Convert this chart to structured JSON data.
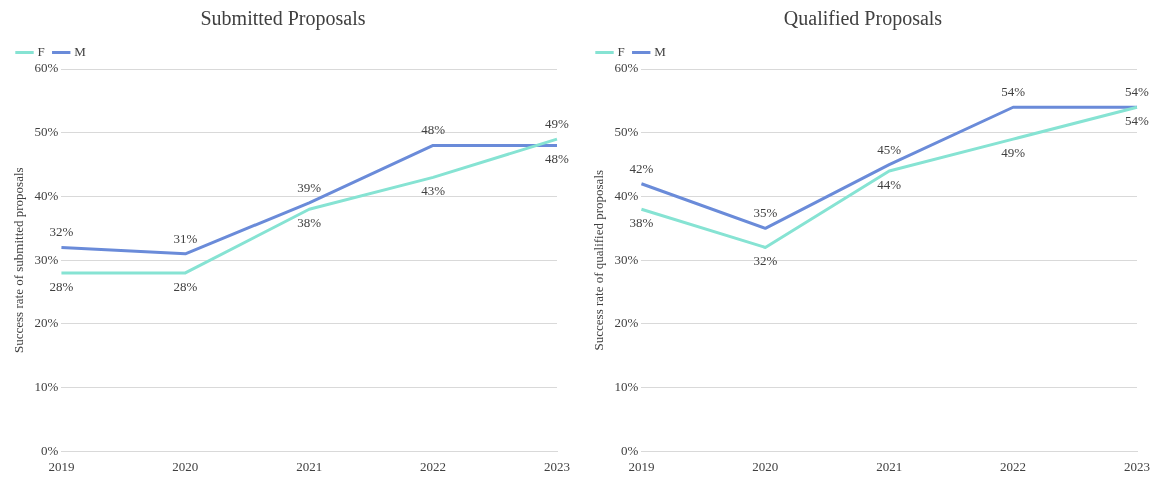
{
  "chart_data": [
    {
      "type": "line",
      "title": "Submitted Proposals",
      "ylabel": "Success rate of submitted proposals",
      "categories": [
        "2019",
        "2020",
        "2021",
        "2022",
        "2023"
      ],
      "series": [
        {
          "name": "F",
          "color": "#86e3d3",
          "values": [
            28,
            28,
            38,
            43,
            49
          ],
          "value_labels": [
            "28%",
            "28%",
            "38%",
            "43%",
            "49%"
          ]
        },
        {
          "name": "M",
          "color": "#6a8bd9",
          "values": [
            32,
            31,
            39,
            48,
            48
          ],
          "value_labels": [
            "32%",
            "31%",
            "39%",
            "48%",
            "48%"
          ]
        }
      ],
      "ylim": [
        0,
        60
      ],
      "yticks": [
        {
          "value": 0,
          "label": "0%"
        },
        {
          "value": 10,
          "label": "10%"
        },
        {
          "value": 20,
          "label": "20%"
        },
        {
          "value": 30,
          "label": "30%"
        },
        {
          "value": 40,
          "label": "40%"
        },
        {
          "value": 50,
          "label": "50%"
        },
        {
          "value": 60,
          "label": "60%"
        }
      ],
      "grid": "y",
      "legend": "top left",
      "marker": "none",
      "line_style": "solid"
    },
    {
      "type": "line",
      "title": "Qualified Proposals",
      "ylabel": "Success rate of qualified proposals",
      "categories": [
        "2019",
        "2020",
        "2021",
        "2022",
        "2023"
      ],
      "series": [
        {
          "name": "F",
          "color": "#86e3d3",
          "values": [
            38,
            32,
            44,
            49,
            54
          ],
          "value_labels": [
            "38%",
            "32%",
            "44%",
            "49%",
            "54%"
          ]
        },
        {
          "name": "M",
          "color": "#6a8bd9",
          "values": [
            42,
            35,
            45,
            54,
            54
          ],
          "value_labels": [
            "42%",
            "35%",
            "45%",
            "54%",
            "54%"
          ]
        }
      ],
      "ylim": [
        0,
        60
      ],
      "yticks": [
        {
          "value": 0,
          "label": "0%"
        },
        {
          "value": 10,
          "label": "10%"
        },
        {
          "value": 20,
          "label": "20%"
        },
        {
          "value": 30,
          "label": "30%"
        },
        {
          "value": 40,
          "label": "40%"
        },
        {
          "value": 50,
          "label": "50%"
        },
        {
          "value": 60,
          "label": "60%"
        }
      ],
      "grid": "y",
      "legend": "top left",
      "marker": "none",
      "line_style": "solid"
    }
  ]
}
